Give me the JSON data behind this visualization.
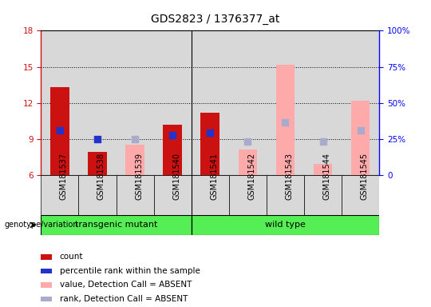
{
  "title": "GDS2823 / 1376377_at",
  "samples": [
    "GSM181537",
    "GSM181538",
    "GSM181539",
    "GSM181540",
    "GSM181541",
    "GSM181542",
    "GSM181543",
    "GSM181544",
    "GSM181545"
  ],
  "red_bars": [
    13.3,
    7.9,
    null,
    10.2,
    11.2,
    null,
    null,
    null,
    null
  ],
  "pink_bars": [
    null,
    null,
    8.5,
    null,
    null,
    8.1,
    15.2,
    6.9,
    12.2
  ],
  "blue_dots": [
    9.7,
    9.0,
    null,
    9.3,
    9.5,
    null,
    null,
    null,
    null
  ],
  "light_blue_dots": [
    null,
    null,
    9.0,
    null,
    null,
    8.8,
    10.4,
    8.8,
    9.7
  ],
  "y_min": 6,
  "y_max": 18,
  "y_ticks": [
    6,
    9,
    12,
    15,
    18
  ],
  "y_ticks_right": [
    0,
    25,
    50,
    75,
    100
  ],
  "y_ticks_right_labels": [
    "0",
    "25%",
    "50%",
    "75%",
    "100%"
  ],
  "groups": [
    {
      "label": "transgenic mutant",
      "start": 0,
      "end": 3
    },
    {
      "label": "wild type",
      "start": 4,
      "end": 8
    }
  ],
  "group_color": "#55ee55",
  "bar_width": 0.5,
  "dot_size": 28,
  "red_color": "#cc1111",
  "pink_color": "#ffaaaa",
  "blue_color": "#2233cc",
  "light_blue_color": "#aaaacc",
  "col_bg_color": "#d8d8d8",
  "plot_bg": "#ffffff",
  "divider_col": 3,
  "legend_items": [
    {
      "color": "#cc1111",
      "label": "count"
    },
    {
      "color": "#2233cc",
      "label": "percentile rank within the sample"
    },
    {
      "color": "#ffaaaa",
      "label": "value, Detection Call = ABSENT"
    },
    {
      "color": "#aaaacc",
      "label": "rank, Detection Call = ABSENT"
    }
  ]
}
